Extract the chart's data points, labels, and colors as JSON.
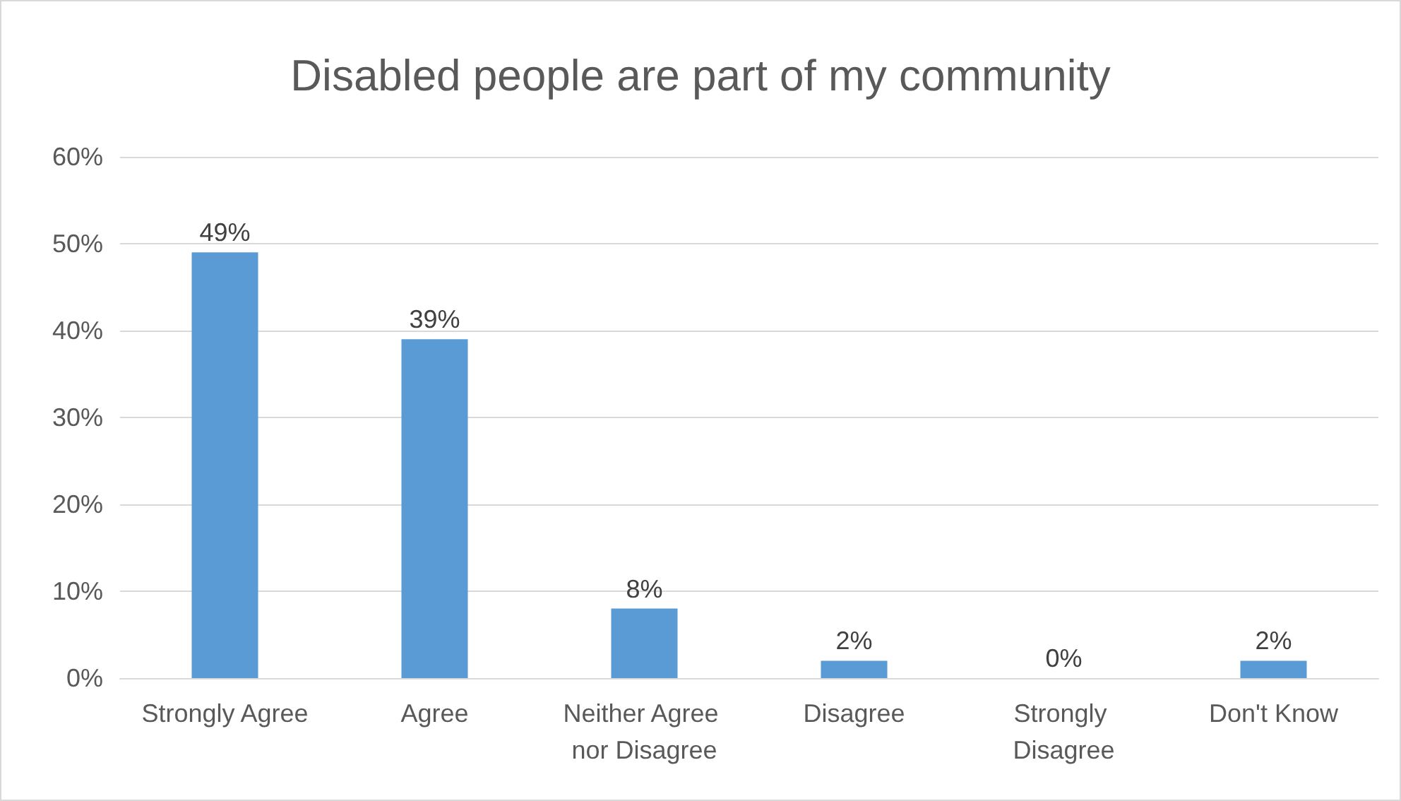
{
  "chart_data": {
    "type": "bar",
    "title": "Disabled people are part of my community",
    "categories": [
      "Strongly Agree",
      "Agree",
      "Neither Agree nor Disagree",
      "Disagree",
      "Strongly Disagree",
      "Don't Know"
    ],
    "values": [
      49,
      39,
      8,
      2,
      0,
      2
    ],
    "value_labels": [
      "49%",
      "39%",
      "8%",
      "2%",
      "0%",
      "2%"
    ],
    "color": "#5b9bd5",
    "ylim": [
      0,
      60
    ],
    "yticks": [
      {
        "value": 0,
        "label": "0%"
      },
      {
        "value": 10,
        "label": "10%"
      },
      {
        "value": 20,
        "label": "20%"
      },
      {
        "value": 30,
        "label": "30%"
      },
      {
        "value": 40,
        "label": "40%"
      },
      {
        "value": 50,
        "label": "50%"
      },
      {
        "value": 60,
        "label": "60%"
      }
    ],
    "grid": "y"
  }
}
